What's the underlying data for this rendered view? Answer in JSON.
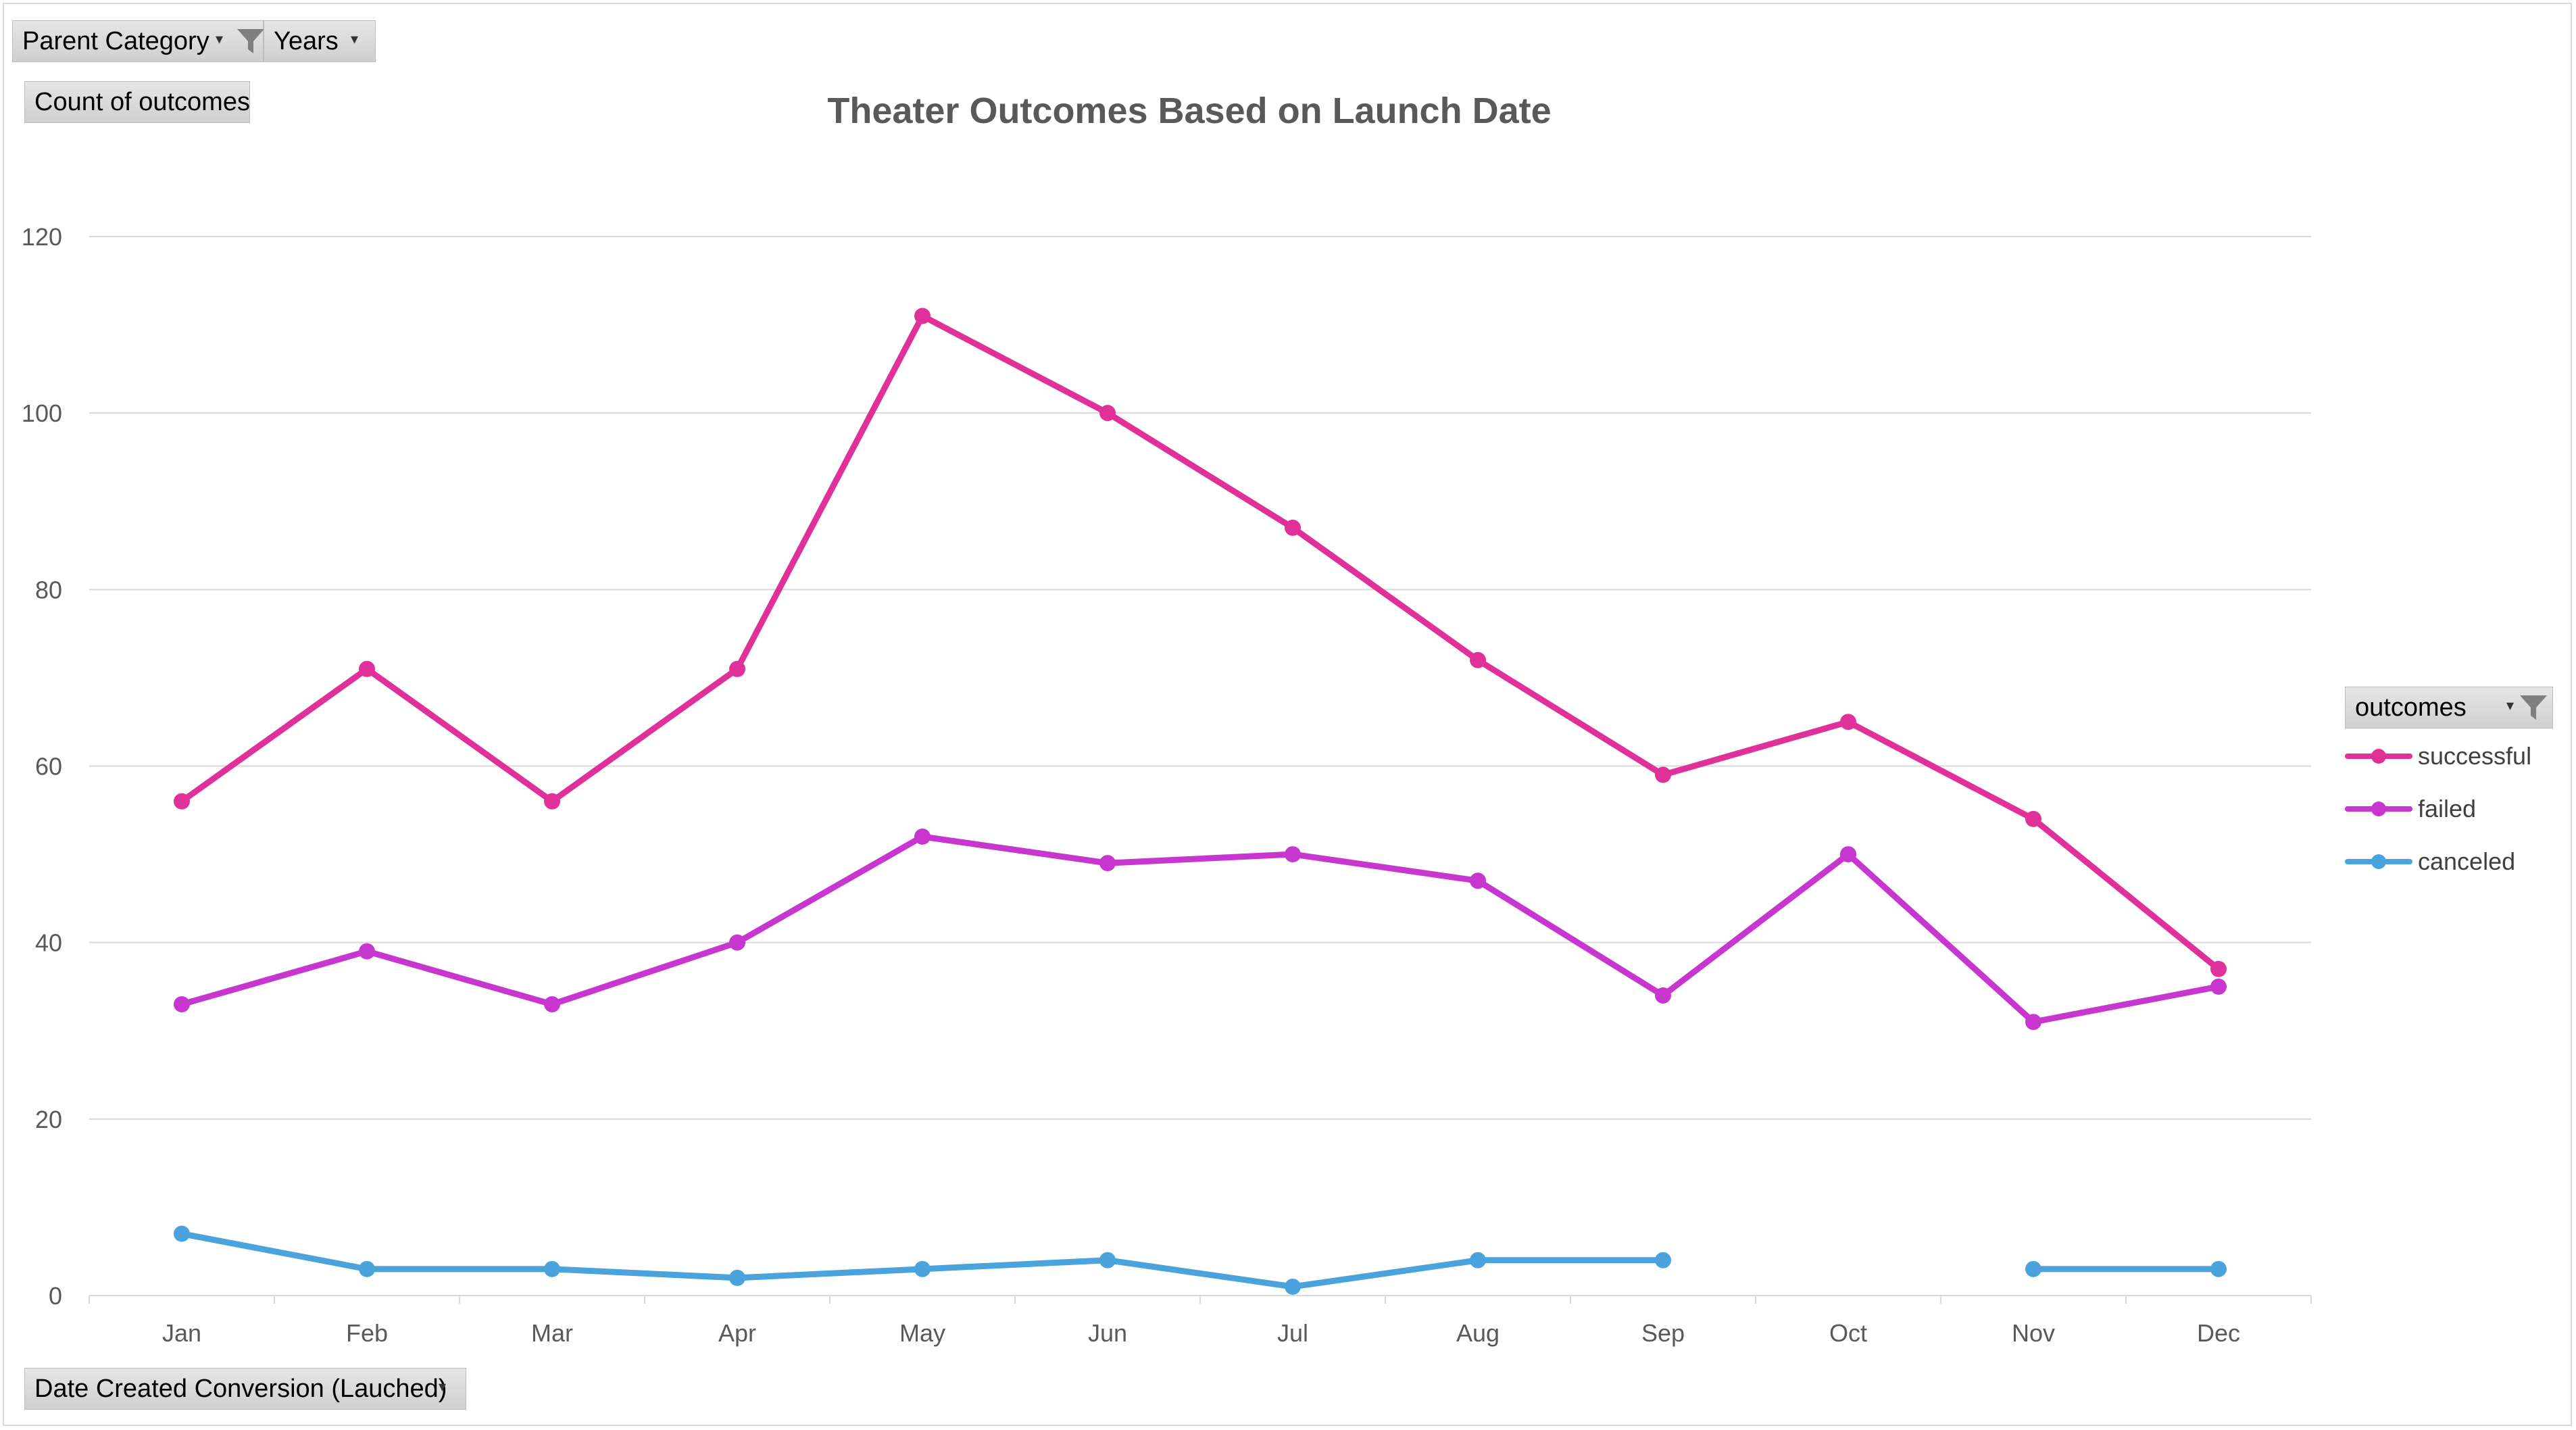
{
  "filters": {
    "parent_category_label": "Parent Category",
    "years_label": "Years",
    "count_label": "Count of outcomes",
    "date_field_label": "Date Created Conversion (Lauched)",
    "legend_field_label": "outcomes"
  },
  "colors": {
    "successful": "#e0309a",
    "failed": "#c736cf",
    "canceled": "#4aa3dc",
    "grid": "#d9d9d9",
    "axis_text": "#595959",
    "title": "#595959"
  },
  "chart_data": {
    "type": "line",
    "title": "Theater Outcomes Based on Launch Date",
    "xlabel": "",
    "ylabel": "",
    "ylim": [
      0,
      120
    ],
    "yticks": [
      0,
      20,
      40,
      60,
      80,
      100,
      120
    ],
    "grid": true,
    "legend_position": "right",
    "categories": [
      "Jan",
      "Feb",
      "Mar",
      "Apr",
      "May",
      "Jun",
      "Jul",
      "Aug",
      "Sep",
      "Oct",
      "Nov",
      "Dec"
    ],
    "series": [
      {
        "name": "successful",
        "values": [
          56,
          71,
          56,
          71,
          111,
          100,
          87,
          72,
          59,
          65,
          54,
          37
        ]
      },
      {
        "name": "failed",
        "values": [
          33,
          39,
          33,
          40,
          52,
          49,
          50,
          47,
          34,
          50,
          31,
          35
        ]
      },
      {
        "name": "canceled",
        "values": [
          7,
          3,
          3,
          2,
          3,
          4,
          1,
          4,
          4,
          null,
          3,
          3
        ]
      }
    ]
  }
}
